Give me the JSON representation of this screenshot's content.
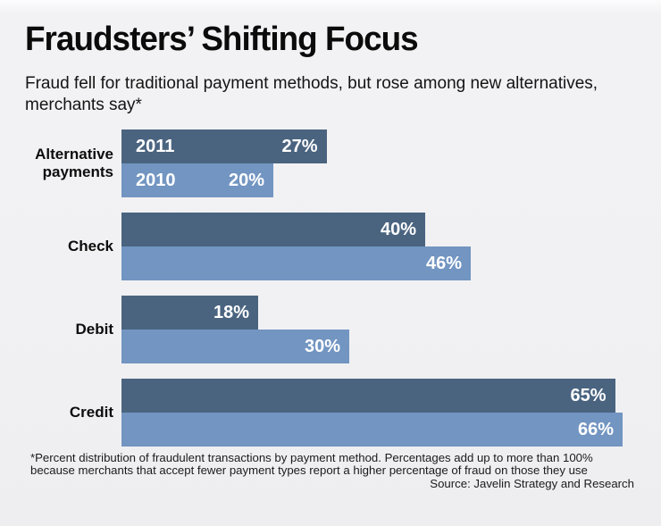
{
  "header": {
    "title": "Fraudsters’ Shifting Focus",
    "subtitle": "Fraud fell for traditional payment methods, but rose among new alternatives, merchants say*"
  },
  "chart_data": {
    "type": "bar",
    "orientation": "horizontal",
    "title": "Fraudsters’ Shifting Focus",
    "categories": [
      "Alternative payments",
      "Check",
      "Debit",
      "Credit"
    ],
    "series": [
      {
        "name": "2011",
        "color": "#4a6480",
        "values": [
          27,
          40,
          18,
          65
        ]
      },
      {
        "name": "2010",
        "color": "#7295c1",
        "values": [
          20,
          46,
          30,
          66
        ]
      }
    ],
    "value_suffix": "%",
    "value_labels_shown": true,
    "series_name_labels_shown_on_first_row_only": true,
    "axis_shown": false,
    "grid": false,
    "legend_position": "in-bar-first-row",
    "xlim": [
      0,
      67
    ]
  },
  "footer": {
    "note": "*Percent distribution of fraudulent transactions by payment method. Percentages add up to more than 100% because merchants that accept fewer payment types report a higher percentage of fraud on those they use",
    "source": "Source: Javelin Strategy and Research"
  }
}
